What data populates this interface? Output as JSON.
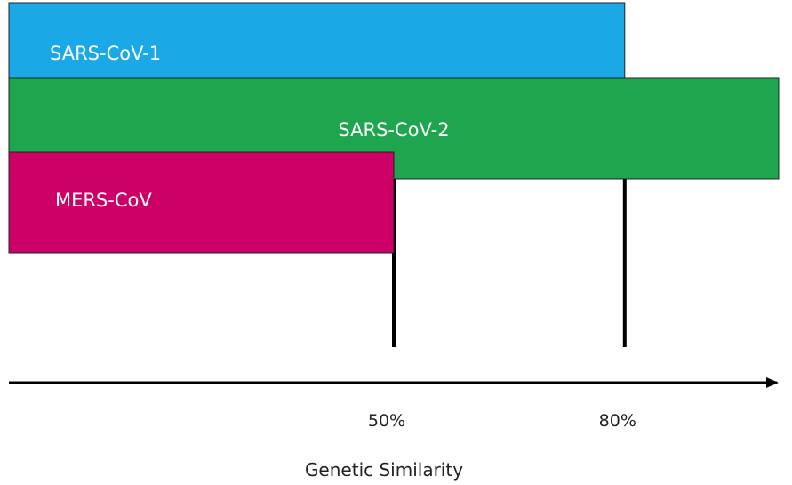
{
  "chart_data": {
    "type": "bar",
    "orientation": "horizontal",
    "categories": [
      "SARS-CoV-1",
      "SARS-CoV-2",
      "MERS-CoV"
    ],
    "values": [
      80,
      100,
      50
    ],
    "colors": [
      "#1aa9e6",
      "#1ea54e",
      "#cc0066"
    ],
    "label_color": "#ffffff",
    "xlabel": "Genetic Similarity",
    "xticks": [
      {
        "value": 50,
        "label": "50%"
      },
      {
        "value": 80,
        "label": "80%"
      }
    ],
    "xlim": [
      0,
      100
    ],
    "reference_lines": [
      50,
      80
    ],
    "grid": false,
    "legend": "none"
  }
}
